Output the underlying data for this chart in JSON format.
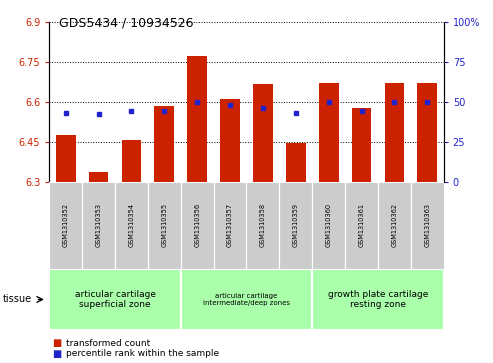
{
  "title": "GDS5434 / 10934526",
  "samples": [
    "GSM1310352",
    "GSM1310353",
    "GSM1310354",
    "GSM1310355",
    "GSM1310356",
    "GSM1310357",
    "GSM1310358",
    "GSM1310359",
    "GSM1310360",
    "GSM1310361",
    "GSM1310362",
    "GSM1310363"
  ],
  "transformed_count": [
    6.475,
    6.335,
    6.455,
    6.585,
    6.77,
    6.61,
    6.665,
    6.445,
    6.67,
    6.575,
    6.67,
    6.67
  ],
  "percentile_rank": [
    43,
    42,
    44,
    44,
    50,
    48,
    46,
    43,
    50,
    44,
    50,
    50
  ],
  "ylim_left": [
    6.3,
    6.9
  ],
  "ylim_right": [
    0,
    100
  ],
  "yticks_left": [
    6.3,
    6.45,
    6.6,
    6.75,
    6.9
  ],
  "yticks_right": [
    0,
    25,
    50,
    75,
    100
  ],
  "ytick_labels_left": [
    "6.3",
    "6.45",
    "6.6",
    "6.75",
    "6.9"
  ],
  "ytick_labels_right": [
    "0",
    "25",
    "50",
    "75",
    "100%"
  ],
  "bar_color": "#cc2200",
  "dot_color": "#2222cc",
  "bar_width": 0.6,
  "baseline": 6.3,
  "tissue_groups": [
    {
      "label": "articular cartilage\nsuperficial zone",
      "start": 0,
      "end": 3,
      "fontsize": 6.5
    },
    {
      "label": "articular cartilage\nintermediate/deep zones",
      "start": 4,
      "end": 7,
      "fontsize": 5.0
    },
    {
      "label": "growth plate cartilage\nresting zone",
      "start": 8,
      "end": 11,
      "fontsize": 6.5
    }
  ],
  "tissue_bg_color": "#aaffaa",
  "sample_bg_color": "#cccccc",
  "legend_bar_label": "transformed count",
  "legend_dot_label": "percentile rank within the sample",
  "tissue_label": "tissue",
  "grid_color": "black",
  "dot_marker_size": 3.5
}
